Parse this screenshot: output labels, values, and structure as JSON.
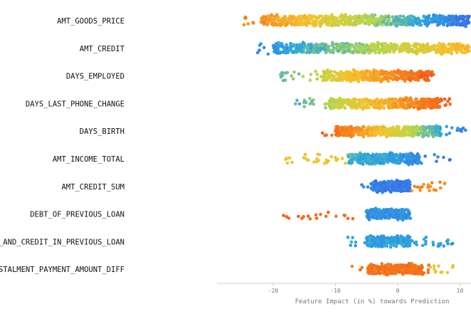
{
  "chart_data": {
    "type": "scatter",
    "subtype": "beeswarm",
    "xlabel": "Feature Impact (in %) towards Prediction",
    "ylabel": "",
    "xlim": [
      -29.5,
      11.8
    ],
    "x_ticks": [
      "-20",
      "-10",
      "0",
      "10"
    ],
    "x_tick_values": [
      -20,
      -10,
      0,
      10
    ],
    "grid": false,
    "legend": "none",
    "color_scale": [
      "#3b6fe8",
      "#2aa8e0",
      "#b8d84a",
      "#f6c22c",
      "#f58a1f",
      "#f25c18"
    ],
    "features": [
      {
        "name": "AMT_GOODS_PRICE",
        "min": -25,
        "max": 11.8,
        "core_min": -22,
        "core_max": 11.8,
        "n": 700
      },
      {
        "name": "AMT_CREDIT",
        "min": -23,
        "max": 11.8,
        "core_min": -20,
        "core_max": 11.8,
        "n": 650
      },
      {
        "name": "DAYS_EMPLOYED",
        "min": -19,
        "max": 6.5,
        "core_min": -12,
        "core_max": 5,
        "n": 450
      },
      {
        "name": "DAYS_LAST_PHONE_CHANGE",
        "min": -17.5,
        "max": 8.5,
        "core_min": -11,
        "core_max": 7,
        "n": 450
      },
      {
        "name": "DAYS_BIRTH",
        "min": -12.5,
        "max": 11,
        "core_min": -10,
        "core_max": 7,
        "n": 500
      },
      {
        "name": "AMT_INCOME_TOTAL",
        "min": -18.5,
        "max": 8.5,
        "core_min": -8,
        "core_max": 3.5,
        "n": 400
      },
      {
        "name": "AMT_CREDIT_SUM",
        "min": -6,
        "max": 8,
        "core_min": -4,
        "core_max": 2,
        "n": 330
      },
      {
        "name": "DEBT_OF_PREVIOUS_LOAN",
        "min": -18.5,
        "max": 3,
        "core_min": -5,
        "core_max": 2,
        "n": 280
      },
      {
        "name": "AMT_PAYMENT_AND_CREDIT_IN_PREVIOUS_LOAN",
        "min": -8,
        "max": 9.5,
        "core_min": -5,
        "core_max": 2,
        "n": 300
      },
      {
        "name": "INSTALMENT_PAYMENT_AMOUNT_DIFF",
        "min": -7.5,
        "max": 9,
        "core_min": -5,
        "core_max": 4,
        "n": 300
      }
    ]
  }
}
